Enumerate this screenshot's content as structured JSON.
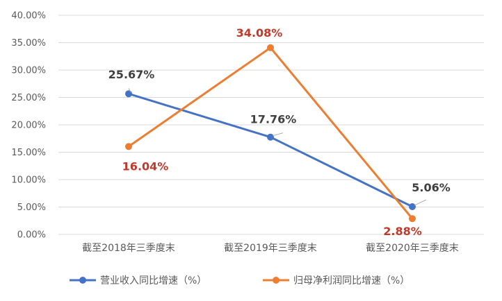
{
  "chart_data": {
    "type": "line",
    "title": "",
    "xlabel": "",
    "ylabel": "",
    "categories": [
      "截至2018年三季度末",
      "截至2019年三季度末",
      "截至2020年三季度末"
    ],
    "ylim": [
      0,
      40
    ],
    "yticks": [
      0,
      5,
      10,
      15,
      20,
      25,
      30,
      35,
      40
    ],
    "ytick_labels": [
      "0.00%",
      "5.00%",
      "10.00%",
      "15.00%",
      "20.00%",
      "25.00%",
      "30.00%",
      "35.00%",
      "40.00%"
    ],
    "grid": true,
    "legend_position": "bottom",
    "series": [
      {
        "name": "营业收入同比增速（%）",
        "color": "#4472C4",
        "label_color": "#404040",
        "values": [
          25.67,
          17.76,
          5.06
        ],
        "labels": [
          "25.67%",
          "17.76%",
          "5.06%"
        ]
      },
      {
        "name": "归母净利润同比增速（%）",
        "color": "#ED7D31",
        "label_color": "#C0392B",
        "values": [
          16.04,
          34.08,
          2.88
        ],
        "labels": [
          "16.04%",
          "34.08%",
          "2.88%"
        ]
      }
    ]
  }
}
